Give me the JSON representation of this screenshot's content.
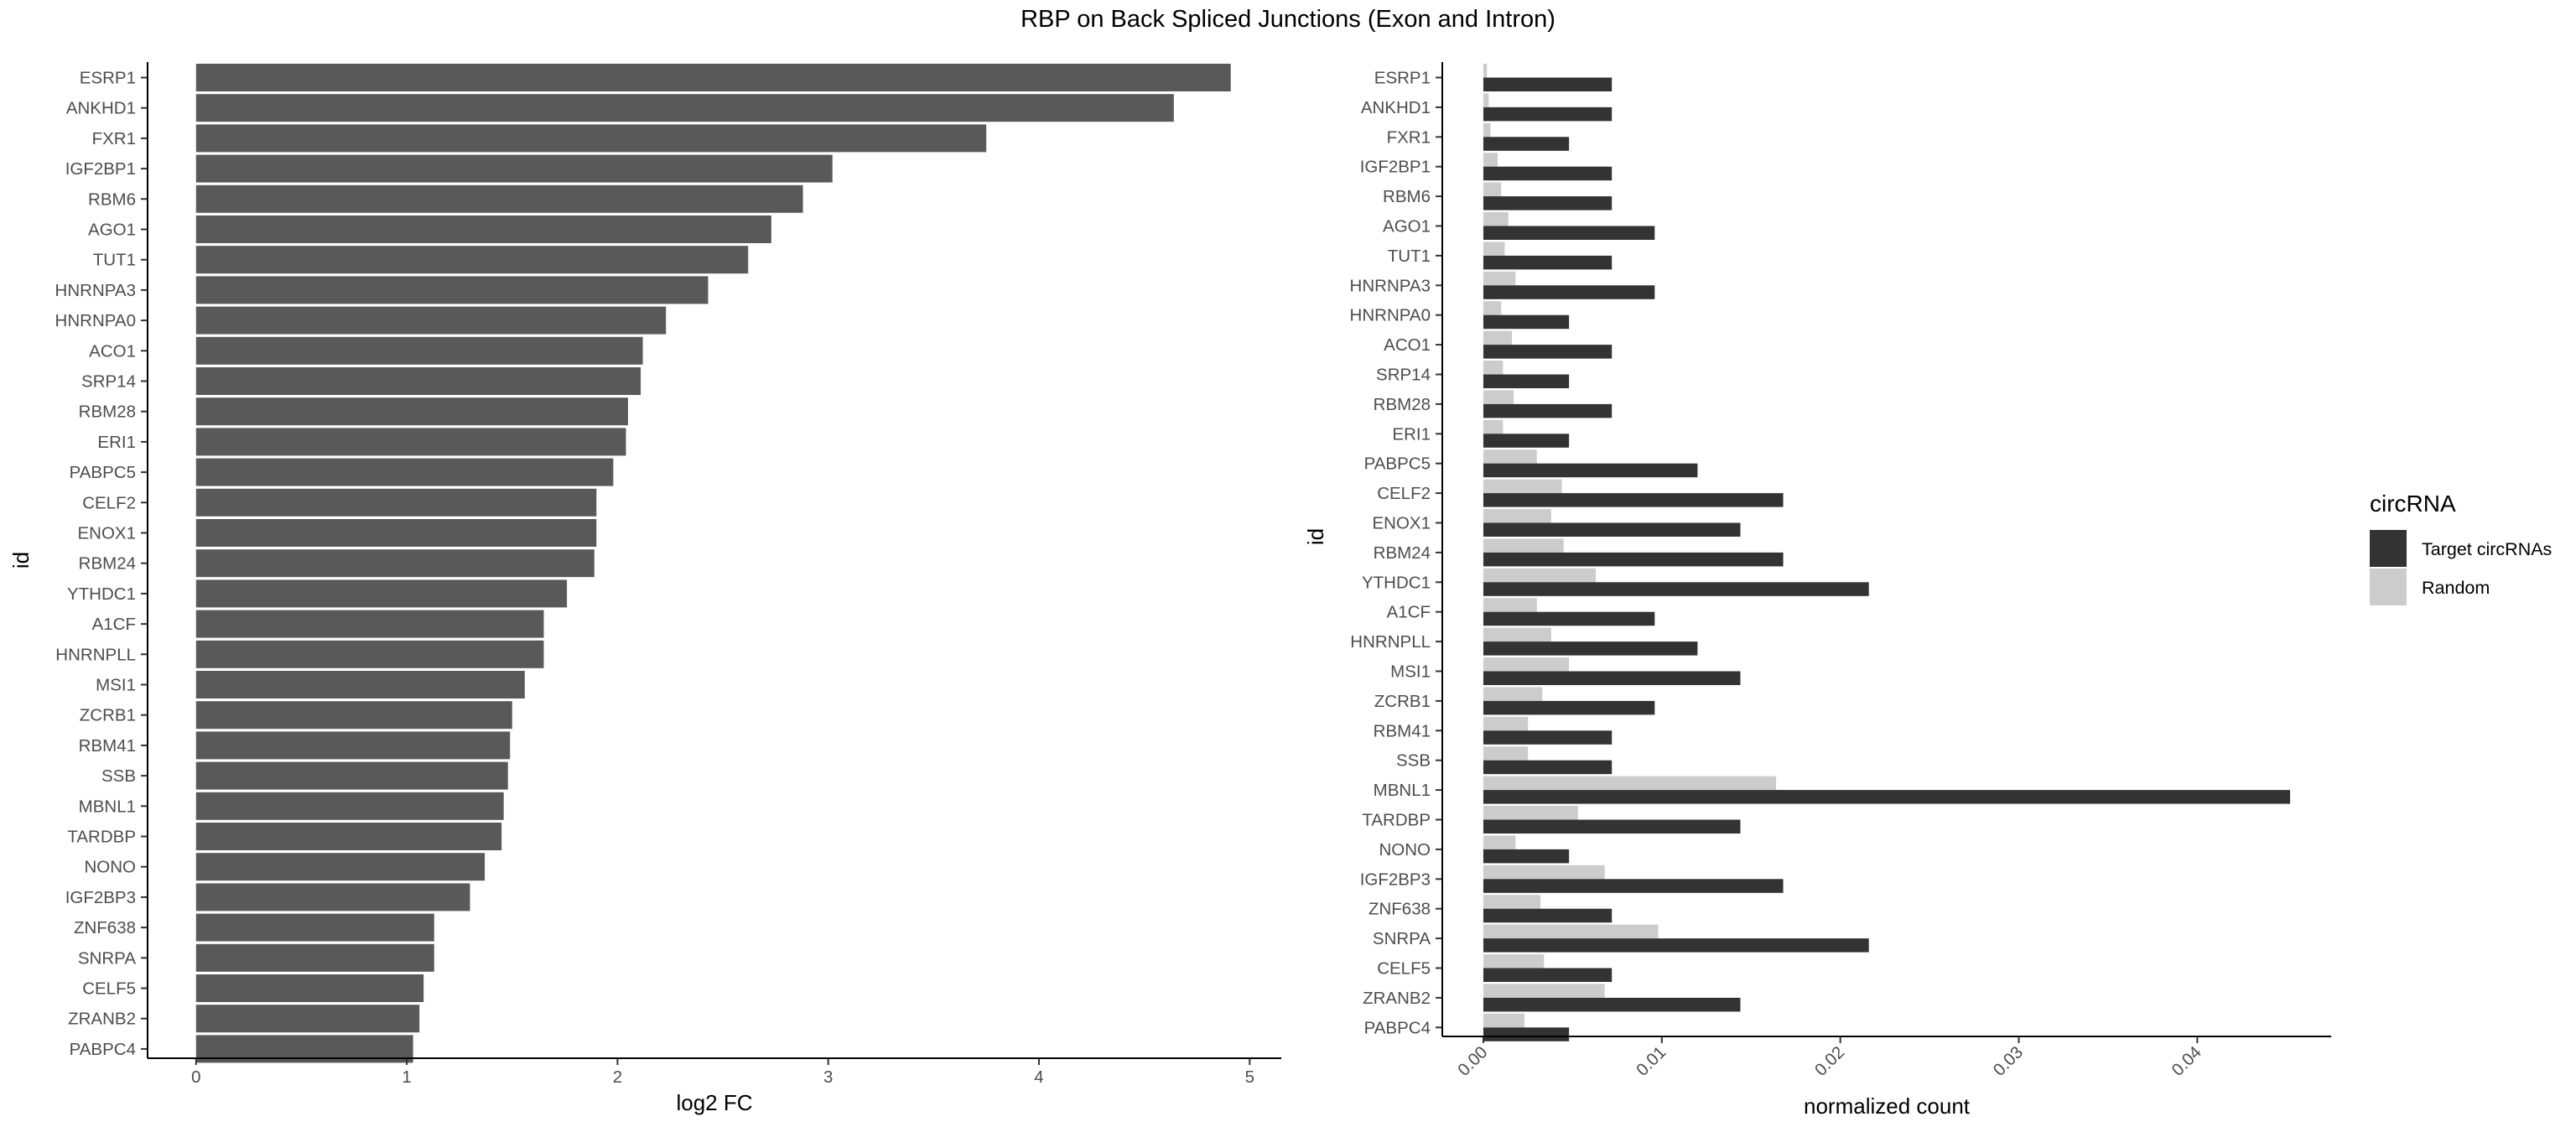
{
  "title": "RBP on Back Spliced Junctions (Exon and Intron)",
  "colors": {
    "left_bar": "#595959",
    "target": "#333333",
    "random": "#cccccc",
    "axis": "#000000",
    "tick_text": "#4d4d4d"
  },
  "chart_data": [
    {
      "type": "bar",
      "orientation": "horizontal",
      "xlabel": "log2 FC",
      "ylabel": "id",
      "xlim": [
        -0.23,
        5.15
      ],
      "xticks": [
        "0",
        "1",
        "2",
        "3",
        "4",
        "5"
      ],
      "categories": [
        "ESRP1",
        "ANKHD1",
        "FXR1",
        "IGF2BP1",
        "RBM6",
        "AGO1",
        "TUT1",
        "HNRNPA3",
        "HNRNPA0",
        "ACO1",
        "SRP14",
        "RBM28",
        "ERI1",
        "PABPC5",
        "CELF2",
        "ENOX1",
        "RBM24",
        "YTHDC1",
        "A1CF",
        "HNRNPLL",
        "MSI1",
        "ZCRB1",
        "RBM41",
        "SSB",
        "MBNL1",
        "TARDBP",
        "NONO",
        "IGF2BP3",
        "ZNF638",
        "SNRPA",
        "CELF5",
        "ZRANB2",
        "PABPC4"
      ],
      "values": [
        4.91,
        4.64,
        3.75,
        3.02,
        2.88,
        2.73,
        2.62,
        2.43,
        2.23,
        2.12,
        2.11,
        2.05,
        2.04,
        1.98,
        1.9,
        1.9,
        1.89,
        1.76,
        1.65,
        1.65,
        1.56,
        1.5,
        1.49,
        1.48,
        1.46,
        1.45,
        1.37,
        1.3,
        1.13,
        1.13,
        1.08,
        1.06,
        1.03
      ],
      "grid": false
    },
    {
      "type": "bar",
      "orientation": "horizontal",
      "grouped": true,
      "xlabel": "normalized count",
      "ylabel": "id",
      "xlim": [
        -0.0023,
        0.0475
      ],
      "xticks": [
        "0.00",
        "0.01",
        "0.02",
        "0.03",
        "0.04"
      ],
      "xtick_values": [
        0,
        0.01,
        0.02,
        0.03,
        0.04
      ],
      "categories": [
        "ESRP1",
        "ANKHD1",
        "FXR1",
        "IGF2BP1",
        "RBM6",
        "AGO1",
        "TUT1",
        "HNRNPA3",
        "HNRNPA0",
        "ACO1",
        "SRP14",
        "RBM28",
        "ERI1",
        "PABPC5",
        "CELF2",
        "ENOX1",
        "RBM24",
        "YTHDC1",
        "A1CF",
        "HNRNPLL",
        "MSI1",
        "ZCRB1",
        "RBM41",
        "SSB",
        "MBNL1",
        "TARDBP",
        "NONO",
        "IGF2BP3",
        "ZNF638",
        "SNRPA",
        "CELF5",
        "ZRANB2",
        "PABPC4"
      ],
      "legend_title": "circRNA",
      "legend_position": "right",
      "series": [
        {
          "name": "Target circRNAs",
          "color": "#333333",
          "values": [
            0.0072,
            0.0072,
            0.0048,
            0.0072,
            0.0072,
            0.0096,
            0.0072,
            0.0096,
            0.0048,
            0.0072,
            0.0048,
            0.0072,
            0.0048,
            0.012,
            0.0168,
            0.0144,
            0.0168,
            0.0216,
            0.0096,
            0.012,
            0.0144,
            0.0096,
            0.0072,
            0.0072,
            0.0452,
            0.0144,
            0.0048,
            0.0168,
            0.0072,
            0.0216,
            0.0072,
            0.0144,
            0.0048
          ]
        },
        {
          "name": "Random",
          "color": "#cccccc",
          "values": [
            0.0002,
            0.0003,
            0.0004,
            0.0008,
            0.001,
            0.0014,
            0.0012,
            0.0018,
            0.001,
            0.0016,
            0.0011,
            0.0017,
            0.0011,
            0.003,
            0.0044,
            0.0038,
            0.0045,
            0.0063,
            0.003,
            0.0038,
            0.0048,
            0.0033,
            0.0025,
            0.0025,
            0.0164,
            0.0053,
            0.0018,
            0.0068,
            0.0032,
            0.0098,
            0.0034,
            0.0068,
            0.0023
          ]
        }
      ],
      "grid": false
    }
  ]
}
